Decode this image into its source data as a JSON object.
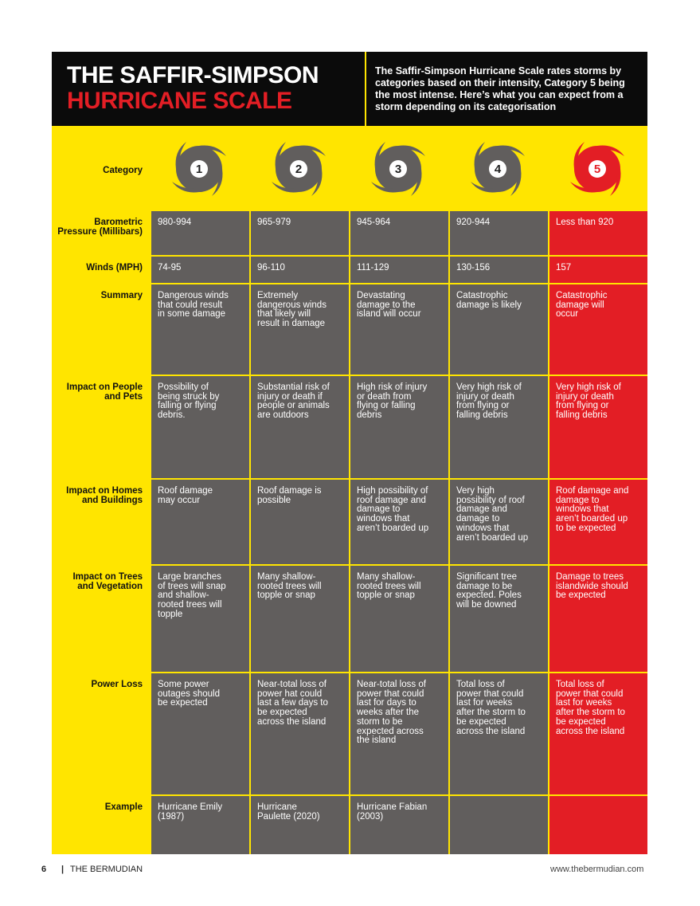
{
  "header": {
    "title_line1": "THE SAFFIR-SIMPSON",
    "title_line2": "HURRICANE SCALE",
    "description": "The Saffir-Simpson Hurricane Scale rates storms by categories based on their intensity, Category 5 being the most intense. Here’s what you can expect from a storm depending on its categorisation"
  },
  "category_label": "Category",
  "categories": [
    1,
    2,
    3,
    4,
    5
  ],
  "rows": [
    {
      "label": "Barometric Pressure (Millibars)",
      "cells": [
        "980-994",
        "965-979",
        "945-964",
        "920-944",
        "Less than 920"
      ]
    },
    {
      "label": "Winds (MPH)",
      "cells": [
        "74-95",
        "96-110",
        "111-129",
        "130-156",
        "157"
      ]
    },
    {
      "label": "Summary",
      "cells": [
        "Dangerous winds that could result in some damage",
        "Extremely dangerous winds that likely will result in damage",
        "Devastating damage to the island will occur",
        "Catastrophic damage is likely",
        "Catastrophic damage will occur"
      ]
    },
    {
      "label": "Impact on People and Pets",
      "cells": [
        "Possibility of being struck by falling or flying debris.",
        "Substantial risk of injury or death if people or animals are outdoors",
        "High risk of injury or death from flying or falling debris",
        "Very high risk of injury or death from flying or falling debris",
        "Very high risk of injury or death from flying or falling debris"
      ]
    },
    {
      "label": "Impact on Homes and Buildings",
      "cells": [
        "Roof damage may occur",
        "Roof damage is possible",
        "High possibility of roof damage and damage to windows that aren’t boarded up",
        "Very high possibility of roof damage and damage to windows that aren’t boarded up",
        "Roof damage and damage to windows that aren’t boarded up to be expected"
      ]
    },
    {
      "label": "Impact on Trees and Vegetation",
      "cells": [
        "Large branches of trees will snap and shallow-rooted trees will topple",
        "Many shallow-rooted trees will topple or snap",
        "Many shallow-rooted trees will topple or snap",
        "Significant tree damage to be expected. Poles will be downed",
        "Damage to trees islandwide should be expected"
      ]
    },
    {
      "label": "Power Loss",
      "cells": [
        "Some power outages should be expected",
        "Near-total loss of power hat could last a few days to be expected across the island",
        "Near-total loss of power that could last for days to weeks after the storm to be expected across the island",
        "Total loss of power that could last for weeks after the storm to be expected across the island",
        "Total loss of power that could last for weeks after the storm to be expected across the island"
      ]
    },
    {
      "label": "Example",
      "cells": [
        "Hurricane Emily (1987)",
        "Hurricane Paulette (2020)",
        "Hurricane Fabian (2003)"
      ]
    }
  ],
  "footer": {
    "page": "6",
    "separator": "|",
    "publication": "THE BERMUDIAN",
    "url": "www.thebermudian.com"
  }
}
